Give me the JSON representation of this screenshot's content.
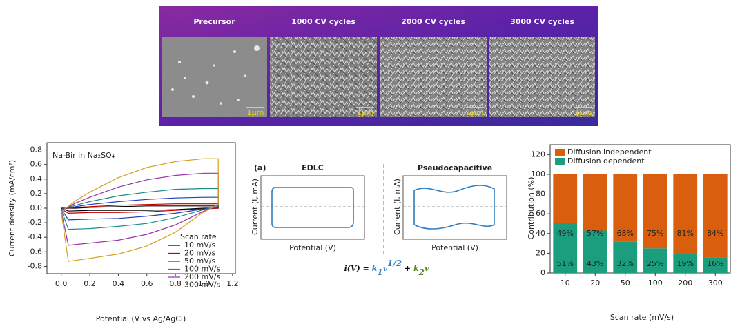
{
  "sem_panel": {
    "labels": [
      "Precursor",
      "1000 CV cycles",
      "2000 CV cycles",
      "3000 CV cycles"
    ],
    "scale_bars": [
      "1μm",
      "1μm",
      "1μm",
      "1μm"
    ]
  },
  "schematic": {
    "panel_label": "(a)",
    "titles": [
      "EDLC",
      "Pseudocapacitive"
    ],
    "y_label": "Current (I, mA)",
    "x_label": "Potential (V)",
    "equation": {
      "lhs": "i(V) = ",
      "k1": "k",
      "k1_sub": "1",
      "v1": "v",
      "v1_sup": "1/2",
      "plus": " + ",
      "k2": "k",
      "k2_sub": "2",
      "v2": "v"
    }
  },
  "chart_data": [
    {
      "type": "line",
      "annotation": "Na-Bir in Na₂SO₄",
      "x_label": "Potential (V vs Ag/AgCl)",
      "y_label": "Current density (mA/cm²)",
      "legend_title": "Scan rate",
      "legend_loc": "lower right",
      "x": [
        0,
        0.1,
        0.2,
        0.4,
        0.6,
        0.8,
        1.0,
        1.1,
        1.1,
        1.0,
        0.8,
        0.6,
        0.4,
        0.2,
        0.05,
        0
      ],
      "series": [
        {
          "name": "10 mV/s",
          "color": "#000000",
          "values": [
            0,
            0,
            0.01,
            0.02,
            0.03,
            0.03,
            0.03,
            0.03,
            0,
            0,
            -0.02,
            -0.03,
            -0.03,
            -0.03,
            -0.04,
            0
          ]
        },
        {
          "name": "20 mV/s",
          "color": "#c00000",
          "values": [
            -0.01,
            0.01,
            0.02,
            0.04,
            0.05,
            0.06,
            0.06,
            0.06,
            0,
            -0.01,
            -0.03,
            -0.05,
            -0.06,
            -0.06,
            -0.07,
            -0.01
          ]
        },
        {
          "name": "50 mV/s",
          "color": "#1f3fbf",
          "values": [
            -0.01,
            0.02,
            0.05,
            0.09,
            0.12,
            0.14,
            0.15,
            0.15,
            0.01,
            -0.01,
            -0.07,
            -0.11,
            -0.14,
            -0.15,
            -0.16,
            -0.01
          ]
        },
        {
          "name": "100 mV/s",
          "color": "#1a8a8a",
          "values": [
            -0.02,
            0.04,
            0.09,
            0.17,
            0.22,
            0.26,
            0.27,
            0.27,
            0.02,
            -0.02,
            -0.13,
            -0.21,
            -0.25,
            -0.28,
            -0.29,
            -0.02
          ]
        },
        {
          "name": "200 mV/s",
          "color": "#9b30b0",
          "values": [
            -0.04,
            0.07,
            0.15,
            0.29,
            0.39,
            0.45,
            0.48,
            0.48,
            0.04,
            -0.04,
            -0.23,
            -0.36,
            -0.44,
            -0.48,
            -0.51,
            -0.04
          ]
        },
        {
          "name": "300 mV/s",
          "color": "#d4a017",
          "values": [
            -0.05,
            0.1,
            0.22,
            0.42,
            0.56,
            0.64,
            0.68,
            0.68,
            0.05,
            -0.05,
            -0.33,
            -0.52,
            -0.63,
            -0.69,
            -0.73,
            -0.05
          ]
        }
      ],
      "xlim": [
        -0.1,
        1.22
      ],
      "ylim": [
        -0.9,
        0.9
      ],
      "xticks": [
        {
          "value": 0,
          "label": "0.0"
        },
        0.2,
        0.4,
        0.6,
        0.8,
        {
          "value": 1,
          "label": "1.0"
        },
        1.2
      ],
      "yticks": [
        -0.8,
        -0.6,
        -0.4,
        -0.2,
        {
          "value": 0,
          "label": "0.0"
        },
        0.2,
        0.4,
        0.6,
        0.8
      ]
    },
    {
      "type": "bar",
      "stacked": true,
      "x_label": "Scan rate (mV/s)",
      "y_label": "Contribution (%)",
      "legend_loc": "upper left",
      "categories": [
        "10",
        "20",
        "50",
        "100",
        "200",
        "300"
      ],
      "series": [
        {
          "name": "Diffusion dependent",
          "color": "#1b9e7e",
          "values": [
            51,
            43,
            32,
            25,
            19,
            16
          ],
          "value_labels": [
            "51%",
            "43%",
            "32%",
            "25%",
            "19%",
            "16%"
          ]
        },
        {
          "name": "Diffusion independent",
          "color": "#d95f0e",
          "values": [
            49,
            57,
            68,
            75,
            81,
            84
          ],
          "value_labels": [
            "49%",
            "57%",
            "68%",
            "75%",
            "81%",
            "84%"
          ]
        }
      ],
      "ylim": [
        0,
        130
      ],
      "yticks": [
        0,
        20,
        40,
        60,
        80,
        100,
        120
      ]
    }
  ]
}
